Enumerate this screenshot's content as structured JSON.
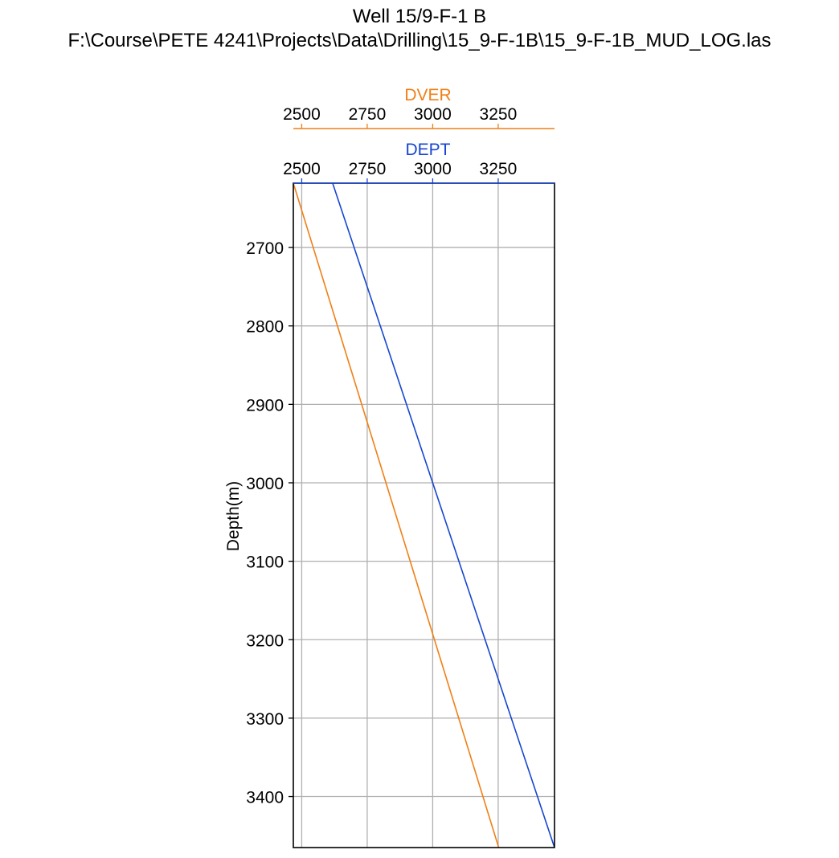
{
  "title": "Well 15/9-F-1 B",
  "subtitle": "F:\\Course\\PETE 4241\\Projects\\Data\\Drilling\\15_9-F-1B\\15_9-F-1B_MUD_LOG.las",
  "colors": {
    "DVER": "#f07f16",
    "DEPT": "#1746d0",
    "grid": "#b0b0b0"
  },
  "chart_data": {
    "type": "line",
    "title": "Well 15/9-F-1 B",
    "subtitle": "F:\\Course\\PETE 4241\\Projects\\Data\\Drilling\\15_9-F-1B\\15_9-F-1B_MUD_LOG.las",
    "ylabel": "Depth(m)",
    "ylim": [
      3465,
      2618
    ],
    "yticks": [
      2700,
      2800,
      2900,
      3000,
      3100,
      3200,
      3300,
      3400
    ],
    "grid": true,
    "series": [
      {
        "name": "DVER",
        "color": "#f07f16",
        "xlim": [
          2468,
          3465
        ],
        "xticks": [
          2500,
          2750,
          3000,
          3250
        ],
        "points": [
          [
            2468,
            2618
          ],
          [
            3252,
            3465
          ]
        ]
      },
      {
        "name": "DEPT",
        "color": "#1746d0",
        "xlim": [
          2468,
          3465
        ],
        "xticks": [
          2500,
          2750,
          3000,
          3250
        ],
        "points": [
          [
            2618,
            2618
          ],
          [
            3465,
            3465
          ]
        ]
      }
    ]
  }
}
